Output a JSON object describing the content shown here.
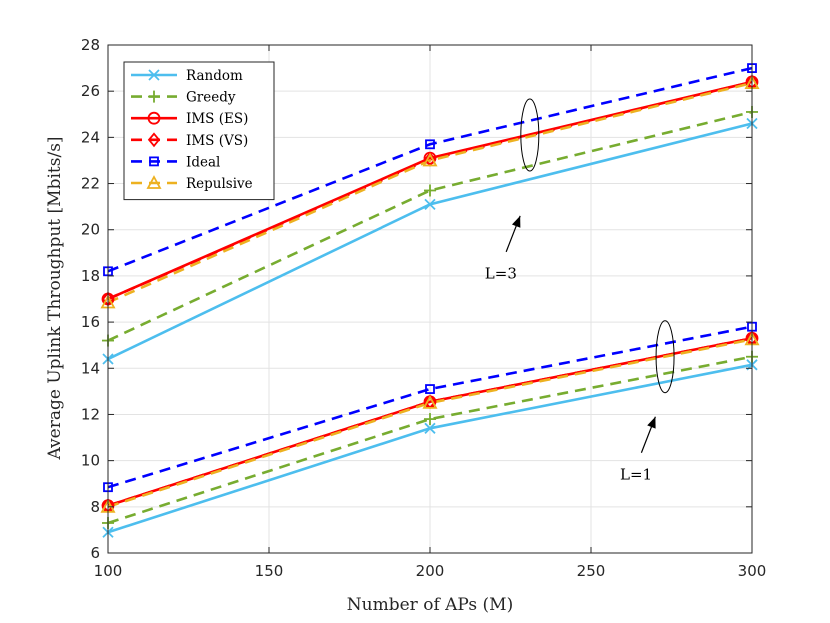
{
  "chart_data": {
    "type": "line",
    "title": "",
    "xlabel": "Number of APs (M)",
    "ylabel": "Average Uplink Throughput [Mbits/s]",
    "x": [
      100,
      200,
      300
    ],
    "xlim": [
      100,
      300
    ],
    "ylim": [
      6,
      28
    ],
    "xticks": [
      100,
      150,
      200,
      250,
      300
    ],
    "yticks": [
      6,
      8,
      10,
      12,
      14,
      16,
      18,
      20,
      22,
      24,
      26,
      28
    ],
    "grid": true,
    "legend_position": "top-left",
    "series": [
      {
        "name": "Random",
        "group": "L=3",
        "values": [
          14.4,
          21.1,
          24.6
        ],
        "color": "#4DBEEE",
        "dash": "solid",
        "marker": "x"
      },
      {
        "name": "Greedy",
        "group": "L=3",
        "values": [
          15.2,
          21.7,
          25.1
        ],
        "color": "#77AC30",
        "dash": "dashed",
        "marker": "plus"
      },
      {
        "name": "IMS (ES)",
        "group": "L=3",
        "values": [
          17.0,
          23.1,
          26.4
        ],
        "color": "#FF0000",
        "dash": "solid",
        "marker": "circle"
      },
      {
        "name": "IMS (VS)",
        "group": "L=3",
        "values": [
          17.0,
          23.05,
          26.4
        ],
        "color": "#FF0000",
        "dash": "dashed",
        "marker": "diamond"
      },
      {
        "name": "Ideal",
        "group": "L=3",
        "values": [
          18.2,
          23.7,
          27.0
        ],
        "color": "#0000FF",
        "dash": "dashed",
        "marker": "square"
      },
      {
        "name": "Repulsive",
        "group": "L=3",
        "values": [
          16.85,
          23.0,
          26.35
        ],
        "color": "#EDB120",
        "dash": "dashed",
        "marker": "triangle"
      },
      {
        "name": "Random",
        "group": "L=1",
        "values": [
          6.9,
          11.4,
          14.15
        ],
        "color": "#4DBEEE",
        "dash": "solid",
        "marker": "x"
      },
      {
        "name": "Greedy",
        "group": "L=1",
        "values": [
          7.3,
          11.8,
          14.5
        ],
        "color": "#77AC30",
        "dash": "dashed",
        "marker": "plus"
      },
      {
        "name": "IMS (ES)",
        "group": "L=1",
        "values": [
          8.05,
          12.55,
          15.3
        ],
        "color": "#FF0000",
        "dash": "solid",
        "marker": "circle"
      },
      {
        "name": "IMS (VS)",
        "group": "L=1",
        "values": [
          8.05,
          12.55,
          15.3
        ],
        "color": "#FF0000",
        "dash": "dashed",
        "marker": "diamond"
      },
      {
        "name": "Ideal",
        "group": "L=1",
        "values": [
          8.85,
          13.1,
          15.8
        ],
        "color": "#0000FF",
        "dash": "dashed",
        "marker": "square"
      },
      {
        "name": "Repulsive",
        "group": "L=1",
        "values": [
          8.0,
          12.5,
          15.25
        ],
        "color": "#EDB120",
        "dash": "dashed",
        "marker": "triangle"
      }
    ],
    "legend": [
      "Random",
      "Greedy",
      "IMS (ES)",
      "IMS (VS)",
      "Ideal",
      "Repulsive"
    ],
    "annotations": [
      {
        "text": "L=3",
        "ellipse_center": [
          231,
          24.1
        ],
        "arrow_to": [
          228,
          20.6
        ],
        "label_at": [
          222,
          18.1
        ]
      },
      {
        "text": "L=1",
        "ellipse_center": [
          273,
          14.5
        ],
        "arrow_to": [
          270,
          11.9
        ],
        "label_at": [
          264,
          9.4
        ]
      }
    ]
  }
}
